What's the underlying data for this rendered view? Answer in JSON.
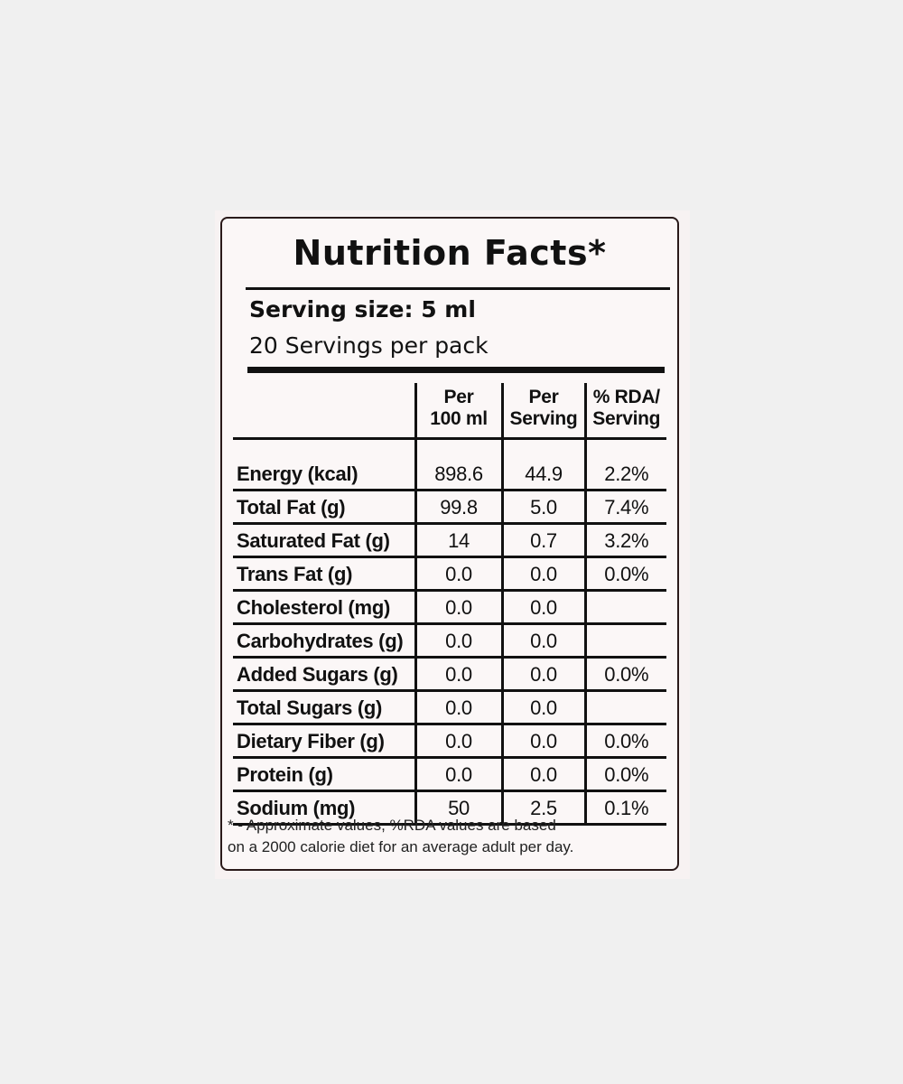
{
  "label": {
    "title": "Nutrition Facts*",
    "serving_size": "Serving size: 5 ml",
    "servings_per_pack": "20 Servings per pack",
    "columns": {
      "per_100": "Per\n100 ml",
      "per_serving": "Per\nServing",
      "rda": "% RDA/\nServing"
    },
    "rows": [
      {
        "nutrient": "Energy (kcal)",
        "per_100": "898.6",
        "per_serving": "44.9",
        "rda": "2.2%"
      },
      {
        "nutrient": "Total Fat (g)",
        "per_100": "99.8",
        "per_serving": "5.0",
        "rda": "7.4%"
      },
      {
        "nutrient": "Saturated Fat (g)",
        "per_100": "14",
        "per_serving": "0.7",
        "rda": "3.2%"
      },
      {
        "nutrient": "Trans Fat (g)",
        "per_100": "0.0",
        "per_serving": "0.0",
        "rda": "0.0%"
      },
      {
        "nutrient": "Cholesterol (mg)",
        "per_100": "0.0",
        "per_serving": "0.0",
        "rda": ""
      },
      {
        "nutrient": "Carbohydrates (g)",
        "per_100": "0.0",
        "per_serving": "0.0",
        "rda": ""
      },
      {
        "nutrient": "Added Sugars (g)",
        "per_100": "0.0",
        "per_serving": "0.0",
        "rda": "0.0%"
      },
      {
        "nutrient": "Total Sugars (g)",
        "per_100": "0.0",
        "per_serving": "0.0",
        "rda": ""
      },
      {
        "nutrient": "Dietary Fiber (g)",
        "per_100": "0.0",
        "per_serving": "0.0",
        "rda": "0.0%"
      },
      {
        "nutrient": "Protein (g)",
        "per_100": "0.0",
        "per_serving": "0.0",
        "rda": "0.0%"
      },
      {
        "nutrient": "Sodium (mg)",
        "per_100": "50",
        "per_serving": "2.5",
        "rda": "0.1%"
      }
    ],
    "footnote_line1": "* - Approximate values, %RDA values are based",
    "footnote_line2": "on a 2000 calorie diet for an average adult per day."
  }
}
